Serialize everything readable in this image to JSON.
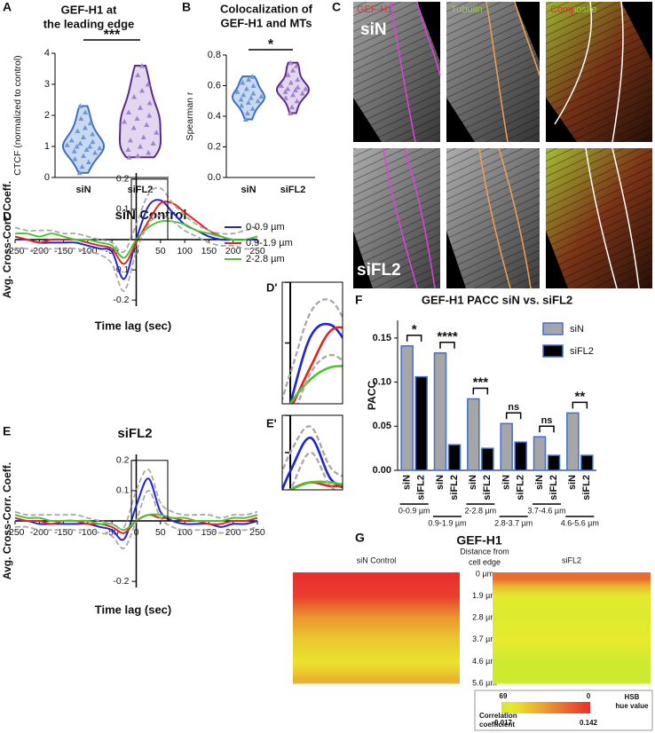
{
  "panel_labels": [
    "A",
    "B",
    "C",
    "D",
    "E",
    "F",
    "G"
  ],
  "panel_c": {
    "channels": [
      "GEF-H1",
      "Tubulin",
      "Composite"
    ],
    "conditions": [
      "siN",
      "siFL2"
    ]
  },
  "chart_data": [
    {
      "type": "violin",
      "title_lines": [
        "GEF-H1 at",
        "the leading edge"
      ],
      "ylabel": "CTCF (normalized to control)",
      "categories": [
        "siN",
        "siFL2"
      ],
      "ylim": [
        0,
        4
      ],
      "yticks": [
        0,
        1,
        2,
        3,
        4
      ],
      "significance": "***",
      "series": [
        {
          "color": "#3d6fc0",
          "fill": "#c9d9f1",
          "point_color": "#6e99d6",
          "values": [
            0.15,
            0.35,
            0.5,
            0.6,
            0.7,
            0.8,
            0.85,
            0.9,
            0.95,
            1.0,
            1.0,
            1.05,
            1.1,
            1.15,
            1.2,
            1.3,
            1.4,
            1.5,
            1.6,
            1.75,
            1.9,
            2.1,
            2.3
          ]
        },
        {
          "color": "#5a2b8f",
          "fill": "#e2d6f0",
          "point_color": "#a083cc",
          "values": [
            0.65,
            0.7,
            0.8,
            0.9,
            1.0,
            1.1,
            1.2,
            1.3,
            1.45,
            1.6,
            1.7,
            1.8,
            1.9,
            2.0,
            2.1,
            2.25,
            2.4,
            2.6,
            2.8,
            3.0,
            3.3,
            3.6
          ]
        }
      ]
    },
    {
      "type": "violin",
      "title_lines": [
        "Colocalization of",
        "GEF-H1 and MTs"
      ],
      "ylabel": "Spearman r",
      "categories": [
        "siN",
        "siFL2"
      ],
      "ylim": [
        0,
        0.8
      ],
      "yticks": [
        {
          "value": 0,
          "label": "0.0"
        },
        0.2,
        0.4,
        0.6,
        0.8
      ],
      "significance": "*",
      "series": [
        {
          "color": "#3d6fc0",
          "fill": "#c9d9f1",
          "point_color": "#6e99d6",
          "values": [
            0.38,
            0.42,
            0.45,
            0.47,
            0.49,
            0.5,
            0.51,
            0.52,
            0.53,
            0.54,
            0.55,
            0.56,
            0.58,
            0.6,
            0.62,
            0.64,
            0.66
          ]
        },
        {
          "color": "#5a2b8f",
          "fill": "#e2d6f0",
          "point_color": "#a083cc",
          "values": [
            0.42,
            0.46,
            0.5,
            0.52,
            0.54,
            0.55,
            0.56,
            0.57,
            0.58,
            0.58,
            0.59,
            0.6,
            0.62,
            0.64,
            0.67,
            0.7,
            0.73,
            0.75
          ]
        }
      ]
    },
    {
      "type": "line",
      "title": "siN Control",
      "xlabel": "Time lag (sec)",
      "ylabel": "Avg. Cross-Corr. Coeff.",
      "x": [
        -250,
        -225,
        -200,
        -175,
        -150,
        -125,
        -100,
        -75,
        -50,
        -25,
        0,
        25,
        50,
        75,
        100,
        125,
        150,
        175,
        200,
        225,
        250
      ],
      "xlim": [
        -250,
        250
      ],
      "xticks": [
        -250,
        -200,
        -150,
        -100,
        -50,
        0,
        50,
        100,
        150,
        200,
        250
      ],
      "ylim": [
        -0.22,
        0.22
      ],
      "yticks": [
        -0.2,
        -0.1,
        0.1,
        0.2
      ],
      "legend": "upper right",
      "inset": {
        "label": "D'",
        "xlim": [
          -10,
          65
        ],
        "ylim": [
          0,
          0.2
        ]
      },
      "series": [
        {
          "name": "0-0.9 µm",
          "color": "#1f24d6",
          "values": [
            0,
            0,
            -0.01,
            -0.01,
            -0.01,
            -0.01,
            -0.02,
            -0.03,
            -0.04,
            -0.13,
            0,
            0.11,
            0.13,
            0.09,
            0.05,
            0.03,
            0.01,
            0,
            0,
            0,
            0
          ]
        },
        {
          "name": "0.9-1.9 µm",
          "color": "#e0261f",
          "values": [
            0.01,
            0,
            -0.01,
            0,
            0,
            0,
            -0.01,
            -0.02,
            -0.03,
            -0.08,
            -0.01,
            0.06,
            0.12,
            0.12,
            0.09,
            0.06,
            0.03,
            0.01,
            0,
            0,
            0.01
          ]
        },
        {
          "name": "2-2.8 µm",
          "color": "#4cc431",
          "values": [
            0.02,
            0.02,
            0.01,
            0.02,
            0.01,
            0,
            0,
            -0.01,
            -0.02,
            -0.06,
            0,
            0.04,
            0.06,
            0.06,
            0.05,
            0.03,
            0.02,
            0.01,
            0,
            0,
            0.01
          ]
        },
        {
          "color": "#a9a9a9",
          "dash": "dashed",
          "values": [
            0.04,
            0.03,
            0.03,
            0.03,
            0.02,
            0.02,
            0.01,
            0,
            -0.01,
            -0.04,
            0.05,
            0.15,
            0.17,
            0.12,
            0.08,
            0.05,
            0.03,
            0.02,
            0.02,
            0.03,
            0.04
          ]
        },
        {
          "color": "#a9a9a9",
          "dash": "dashed",
          "values": [
            -0.03,
            -0.03,
            -0.04,
            -0.03,
            -0.03,
            -0.03,
            -0.04,
            -0.05,
            -0.08,
            -0.17,
            -0.04,
            0.05,
            0.08,
            0.06,
            0.03,
            0.01,
            -0.01,
            -0.02,
            -0.02,
            -0.03,
            -0.03
          ]
        }
      ]
    },
    {
      "type": "line",
      "title": "siFL2",
      "xlabel": "Time lag (sec)",
      "ylabel": "Avg. Cross-Corr. Coeff.",
      "x": [
        -250,
        -225,
        -200,
        -175,
        -150,
        -125,
        -100,
        -75,
        -50,
        -25,
        0,
        25,
        50,
        75,
        100,
        125,
        150,
        175,
        200,
        225,
        250
      ],
      "xlim": [
        -250,
        250
      ],
      "xticks": [
        -250,
        -200,
        -150,
        -100,
        -50,
        0,
        50,
        100,
        150,
        200,
        250
      ],
      "ylim": [
        -0.22,
        0.22
      ],
      "yticks": [
        -0.2,
        0.1,
        0.2
      ],
      "inset": {
        "label": "E'",
        "xlim": [
          -10,
          65
        ],
        "ylim": [
          0,
          0.2
        ]
      },
      "series": [
        {
          "color": "#1f24d6",
          "values": [
            0,
            0,
            -0.01,
            -0.01,
            -0.01,
            -0.01,
            -0.01,
            -0.02,
            -0.03,
            -0.06,
            0.05,
            0.14,
            0.03,
            0,
            -0.01,
            -0.01,
            -0.01,
            -0.02,
            -0.01,
            -0.01,
            0
          ]
        },
        {
          "color": "#e0261f",
          "values": [
            0.01,
            0,
            0,
            -0.01,
            0,
            0,
            -0.01,
            -0.01,
            -0.02,
            -0.04,
            0,
            0.02,
            0.01,
            0.01,
            0,
            0,
            -0.01,
            -0.01,
            0,
            0,
            0.01
          ]
        },
        {
          "color": "#4cc431",
          "values": [
            0.02,
            0.01,
            0.01,
            0,
            0,
            0,
            0,
            -0.01,
            -0.01,
            -0.03,
            0,
            0.02,
            0.02,
            0.01,
            0.01,
            0,
            0,
            0,
            0.01,
            0.01,
            0.02
          ]
        },
        {
          "color": "#a9a9a9",
          "dash": "dashed",
          "values": [
            0.03,
            0.02,
            0.02,
            0.02,
            0.02,
            0.02,
            0.01,
            0,
            -0.01,
            -0.02,
            0.1,
            0.17,
            0.06,
            0.03,
            0.02,
            0.02,
            0.02,
            0.01,
            0.02,
            0.02,
            0.03
          ]
        },
        {
          "color": "#a9a9a9",
          "dash": "dashed",
          "values": [
            -0.02,
            -0.02,
            -0.03,
            -0.03,
            -0.03,
            -0.03,
            -0.03,
            -0.04,
            -0.05,
            -0.09,
            0,
            0.1,
            0.01,
            -0.02,
            -0.03,
            -0.03,
            -0.03,
            -0.04,
            -0.03,
            -0.03,
            -0.02
          ]
        }
      ]
    },
    {
      "type": "bar",
      "title": "GEF-H1 PACC siN vs. siFL2",
      "ylabel": "PACC",
      "categories": [
        "0-0.9 µm",
        "0.9-1.9 µm",
        "2-2.8 µm",
        "2.8-3.7 µm",
        "3.7-4.6 µm",
        "4.6-5.6 µm"
      ],
      "ylim": [
        0,
        0.17
      ],
      "yticks": [
        {
          "value": 0,
          "label": "0.00"
        },
        0.05,
        {
          "value": 0.1,
          "label": "0.10"
        },
        0.15
      ],
      "significance": [
        "*",
        "****",
        "***",
        "ns",
        "ns",
        "**"
      ],
      "legend": "upper right",
      "edge_color": "#3d6fd6",
      "series": [
        {
          "name": "siN",
          "color": "#a6a6a6",
          "values": [
            0.141,
            0.133,
            0.081,
            0.053,
            0.038,
            0.065
          ]
        },
        {
          "name": "siFL2",
          "color": "#000000",
          "values": [
            0.106,
            0.029,
            0.025,
            0.032,
            0.017,
            0.017
          ]
        }
      ]
    },
    {
      "type": "heatmap",
      "title": "GEF-H1",
      "row_title_lines": [
        "Distance from",
        "cell edge"
      ],
      "rows": [
        "0 µm",
        "1.9 µm",
        "2.8 µm",
        "3.7 µm",
        "4.6 µm",
        "5.6 µm"
      ],
      "series": [
        {
          "name": "siN Control",
          "values": [
            0.141,
            0.133,
            0.081,
            0.053,
            0.038,
            0.065
          ]
        },
        {
          "name": "siFL2",
          "values": [
            0.106,
            0.029,
            0.025,
            0.032,
            0.017,
            0.017
          ]
        }
      ],
      "colorbar": {
        "hue_range": [
          69,
          0
        ],
        "value_range": [
          0.017,
          0.142
        ],
        "hue_label_lines": [
          "HSB",
          "hue value"
        ],
        "value_label_lines": [
          "Correlation",
          "coefficient"
        ]
      }
    }
  ]
}
